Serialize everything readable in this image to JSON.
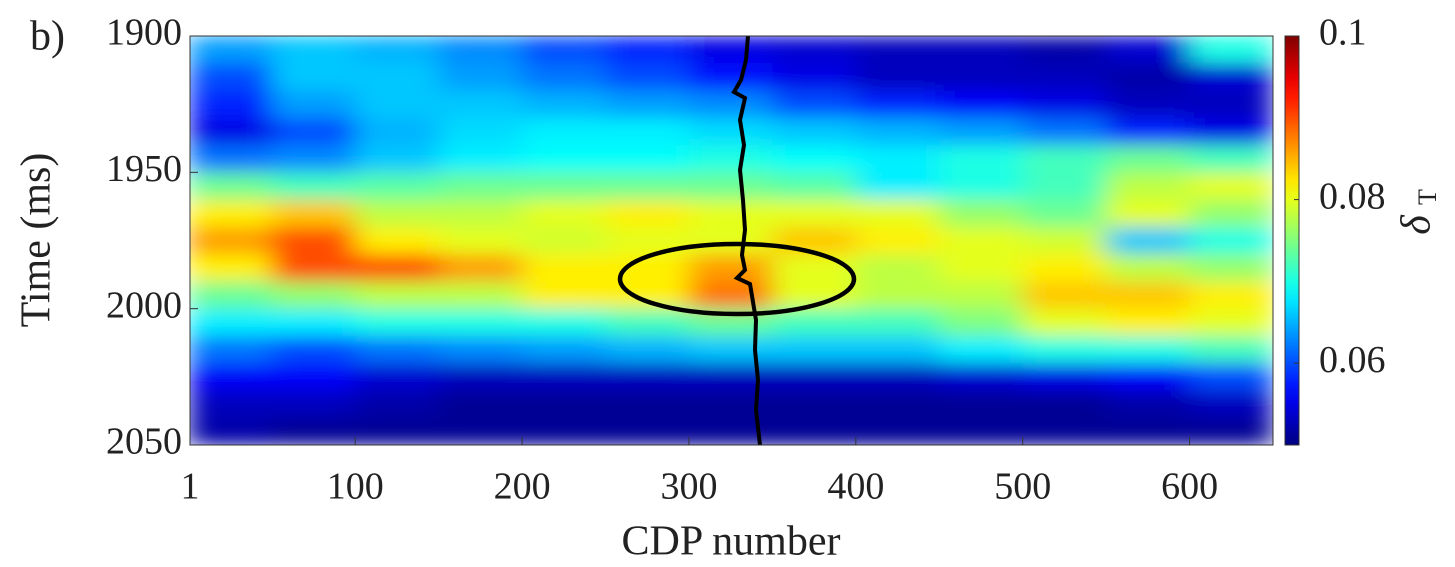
{
  "chart_data": {
    "type": "heatmap",
    "panel_label": "b)",
    "xlabel": "CDP number",
    "ylabel": "Time (ms)",
    "colorbar_label": "δ",
    "colorbar_label_subscript": "T",
    "x": [
      25,
      75,
      125,
      175,
      225,
      275,
      325,
      375,
      425,
      475,
      525,
      575,
      625
    ],
    "y": [
      1905,
      1915,
      1925,
      1935,
      1945,
      1955,
      1965,
      1975,
      1985,
      1995,
      2005,
      2015,
      2025,
      2035,
      2045
    ],
    "z": [
      [
        0.064,
        0.066,
        0.065,
        0.063,
        0.06,
        0.058,
        0.055,
        0.054,
        0.053,
        0.053,
        0.052,
        0.054,
        0.07
      ],
      [
        0.06,
        0.066,
        0.066,
        0.064,
        0.062,
        0.06,
        0.057,
        0.055,
        0.053,
        0.053,
        0.053,
        0.052,
        0.054
      ],
      [
        0.058,
        0.064,
        0.066,
        0.066,
        0.065,
        0.064,
        0.063,
        0.06,
        0.058,
        0.056,
        0.055,
        0.053,
        0.053
      ],
      [
        0.055,
        0.06,
        0.065,
        0.067,
        0.068,
        0.068,
        0.067,
        0.066,
        0.065,
        0.064,
        0.062,
        0.058,
        0.055
      ],
      [
        0.062,
        0.063,
        0.066,
        0.068,
        0.069,
        0.069,
        0.07,
        0.069,
        0.068,
        0.07,
        0.072,
        0.074,
        0.072
      ],
      [
        0.074,
        0.072,
        0.073,
        0.074,
        0.074,
        0.074,
        0.074,
        0.073,
        0.068,
        0.07,
        0.072,
        0.078,
        0.08
      ],
      [
        0.082,
        0.084,
        0.078,
        0.078,
        0.08,
        0.082,
        0.08,
        0.08,
        0.08,
        0.076,
        0.074,
        0.08,
        0.076
      ],
      [
        0.086,
        0.09,
        0.082,
        0.08,
        0.079,
        0.08,
        0.08,
        0.084,
        0.082,
        0.08,
        0.079,
        0.066,
        0.07
      ],
      [
        0.082,
        0.09,
        0.09,
        0.086,
        0.082,
        0.082,
        0.086,
        0.08,
        0.078,
        0.08,
        0.082,
        0.078,
        0.076
      ],
      [
        0.074,
        0.076,
        0.078,
        0.078,
        0.082,
        0.082,
        0.088,
        0.08,
        0.078,
        0.078,
        0.084,
        0.084,
        0.082
      ],
      [
        0.068,
        0.068,
        0.07,
        0.07,
        0.07,
        0.072,
        0.074,
        0.072,
        0.072,
        0.075,
        0.08,
        0.082,
        0.08
      ],
      [
        0.062,
        0.06,
        0.062,
        0.063,
        0.064,
        0.065,
        0.066,
        0.066,
        0.066,
        0.068,
        0.07,
        0.07,
        0.072
      ],
      [
        0.056,
        0.056,
        0.054,
        0.053,
        0.053,
        0.053,
        0.053,
        0.053,
        0.053,
        0.054,
        0.055,
        0.056,
        0.06
      ],
      [
        0.053,
        0.053,
        0.052,
        0.051,
        0.051,
        0.051,
        0.051,
        0.051,
        0.051,
        0.051,
        0.051,
        0.052,
        0.053
      ],
      [
        0.052,
        0.051,
        0.051,
        0.051,
        0.051,
        0.051,
        0.051,
        0.051,
        0.051,
        0.051,
        0.051,
        0.051,
        0.051
      ]
    ],
    "xlim": [
      1,
      650
    ],
    "xticks": [
      1,
      100,
      200,
      300,
      400,
      500,
      600
    ],
    "ylim": [
      1900,
      2050
    ],
    "yticks": [
      1900,
      1950,
      2000,
      2050
    ],
    "y_reversed": true,
    "clim": [
      0.05,
      0.1
    ],
    "cticks": [
      0.06,
      0.08,
      0.1
    ],
    "colormap": "jet"
  }
}
